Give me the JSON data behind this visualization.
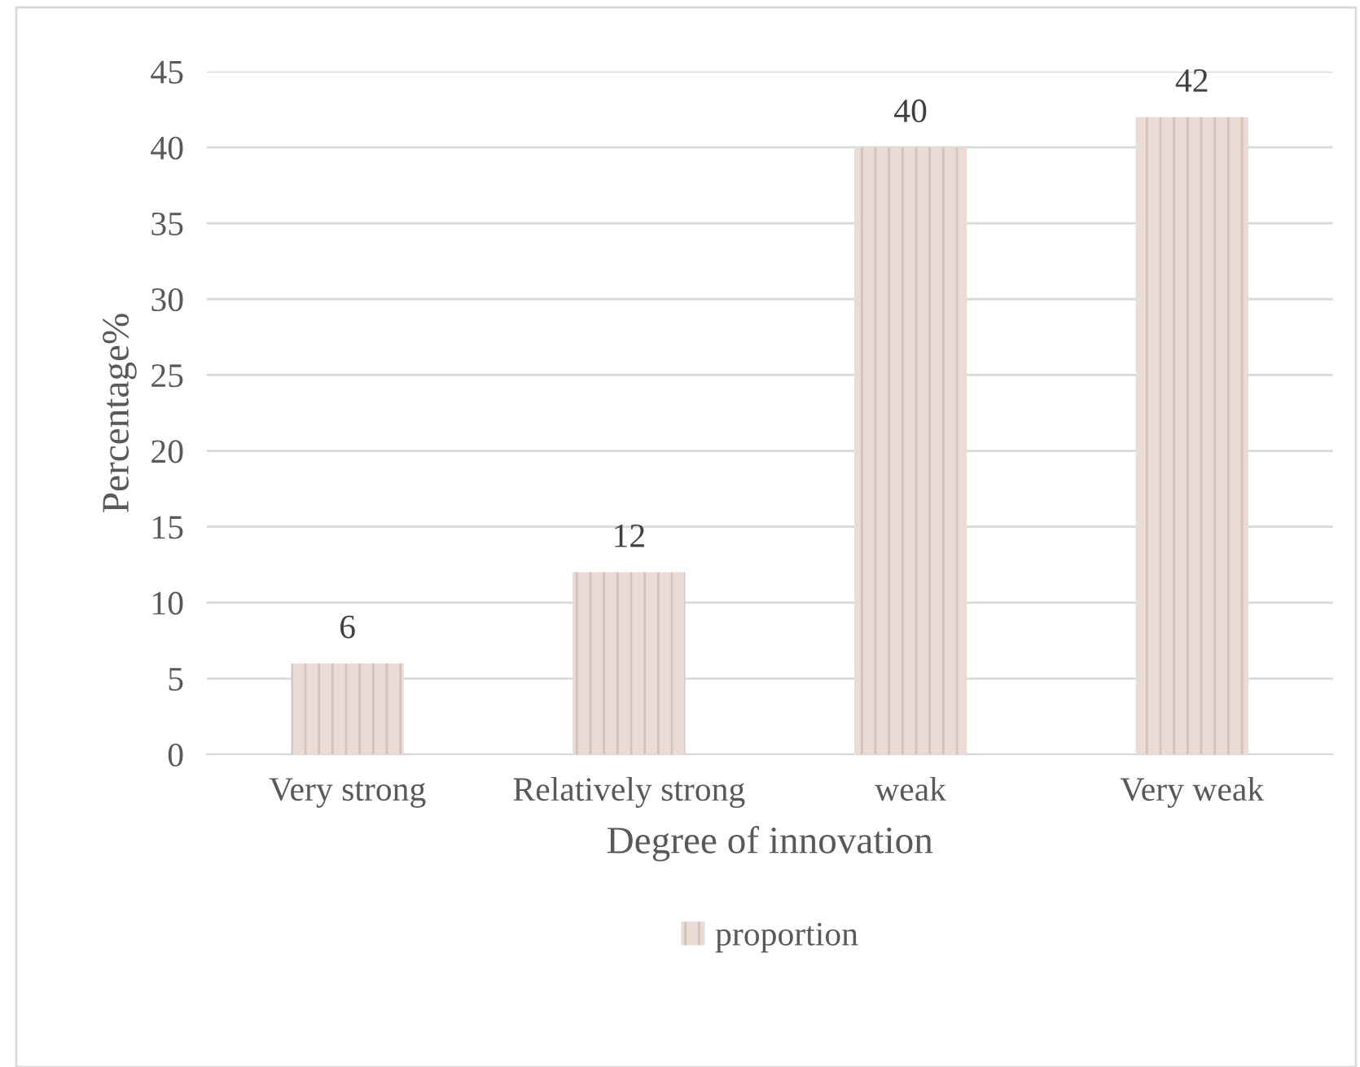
{
  "chart_data": {
    "type": "bar",
    "xlabel": "Degree of innovation",
    "ylabel": "Percentage%",
    "categories": [
      "Very strong",
      "Relatively strong",
      "weak",
      "Very weak"
    ],
    "series": [
      {
        "name": "proportion",
        "color": "#eadbd4",
        "values": [
          6,
          12,
          40,
          42
        ]
      }
    ],
    "ylim": [
      0,
      45
    ],
    "yticks": [
      0,
      5,
      10,
      15,
      20,
      25,
      30,
      35,
      40,
      45
    ],
    "grid": "y",
    "legend": "bottom",
    "data_labels": true
  }
}
